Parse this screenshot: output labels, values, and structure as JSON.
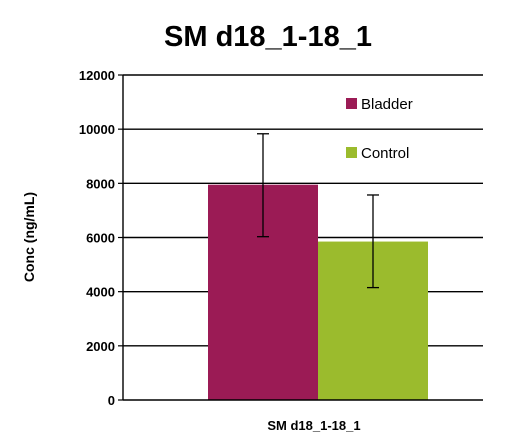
{
  "chart_data": {
    "type": "bar",
    "title": "SM d18_1-18_1",
    "ylabel": "Conc (ng/mL)",
    "xlabel": "",
    "categories": [
      "SM d18_1-18_1"
    ],
    "ylim": [
      0,
      12000
    ],
    "yticks": [
      0,
      2000,
      4000,
      6000,
      8000,
      10000,
      12000
    ],
    "grid": true,
    "legend_position": "top-right",
    "series": [
      {
        "name": "Bladder",
        "values": [
          7950
        ],
        "error_low": [
          6030
        ],
        "error_high": [
          9830
        ],
        "color": "#9b1b55"
      },
      {
        "name": "Control",
        "values": [
          5850
        ],
        "error_low": [
          4150
        ],
        "error_high": [
          7570
        ],
        "color": "#9bbb2d"
      }
    ]
  }
}
